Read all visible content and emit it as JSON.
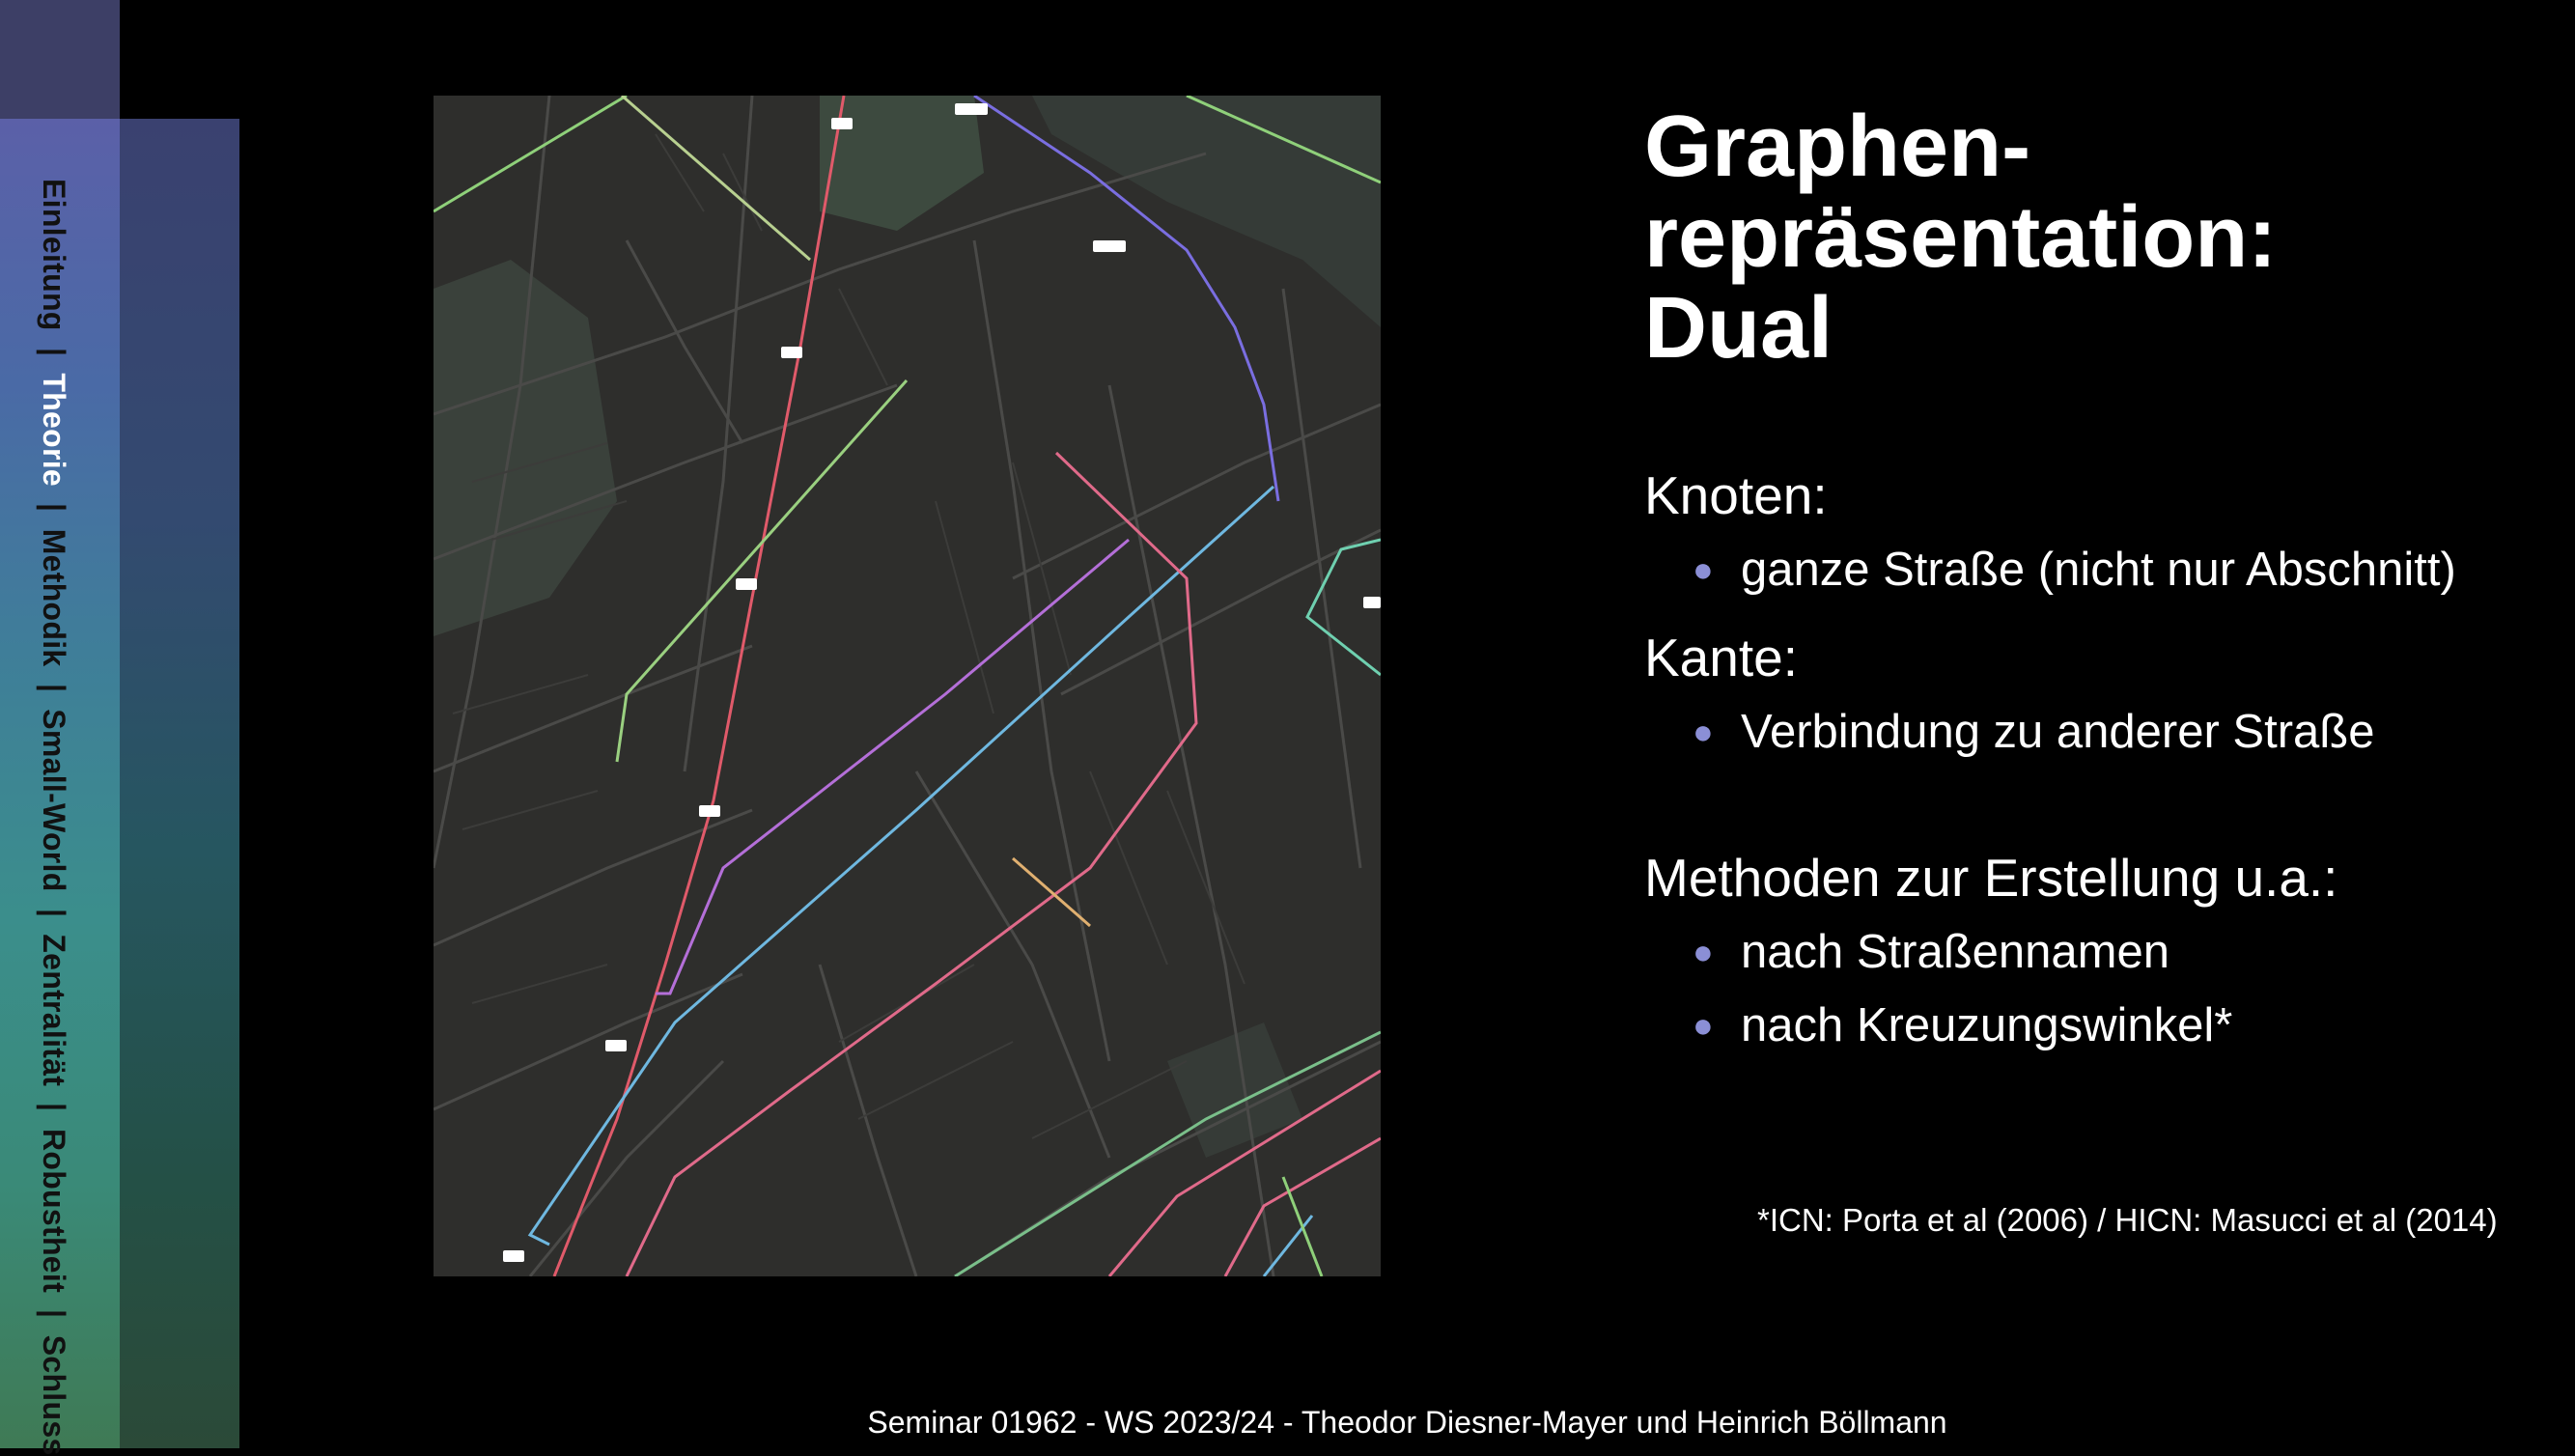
{
  "sidebar": {
    "items": [
      {
        "label": "Einleitung",
        "active": false
      },
      {
        "label": "Theorie",
        "active": true
      },
      {
        "label": "Methodik",
        "active": false
      },
      {
        "label": "Small-World",
        "active": false
      },
      {
        "label": "Zentralität",
        "active": false
      },
      {
        "label": "Robustheit",
        "active": false
      },
      {
        "label": "Schluss",
        "active": false
      }
    ],
    "separator": "|"
  },
  "title": {
    "line1": "Graphen-",
    "line2": "repräsentation:",
    "line3": "Dual"
  },
  "sections": {
    "knoten": {
      "heading": "Knoten:",
      "bullets": [
        "ganze Straße (nicht nur Abschnitt)"
      ]
    },
    "kante": {
      "heading": "Kante:",
      "bullets": [
        "Verbindung zu anderer Straße"
      ]
    },
    "methoden": {
      "heading": "Methoden zur Erstellung u.a.:",
      "bullets": [
        "nach Straßennamen",
        "nach Kreuzungswinkel*"
      ]
    }
  },
  "footnote": "*ICN: Porta et al (2006) / HICN: Masucci et al (2014)",
  "footer": "Seminar 01962 - WS 2023/24 - Theodor Diesner-Mayer und Heinrich Böllmann",
  "colors": {
    "background": "#000000",
    "map_background": "#2e2e2c",
    "bullet": "#8b8fd6",
    "street_red": "#e05a6a",
    "street_green": "#8fd07a",
    "street_purple": "#b46fd8",
    "street_blue": "#6fb8e0",
    "street_violet": "#7a6ee0",
    "street_pink": "#e06a8a",
    "street_orange": "#e0b070"
  },
  "icons": {
    "bullet": "bullet-dot-icon"
  }
}
